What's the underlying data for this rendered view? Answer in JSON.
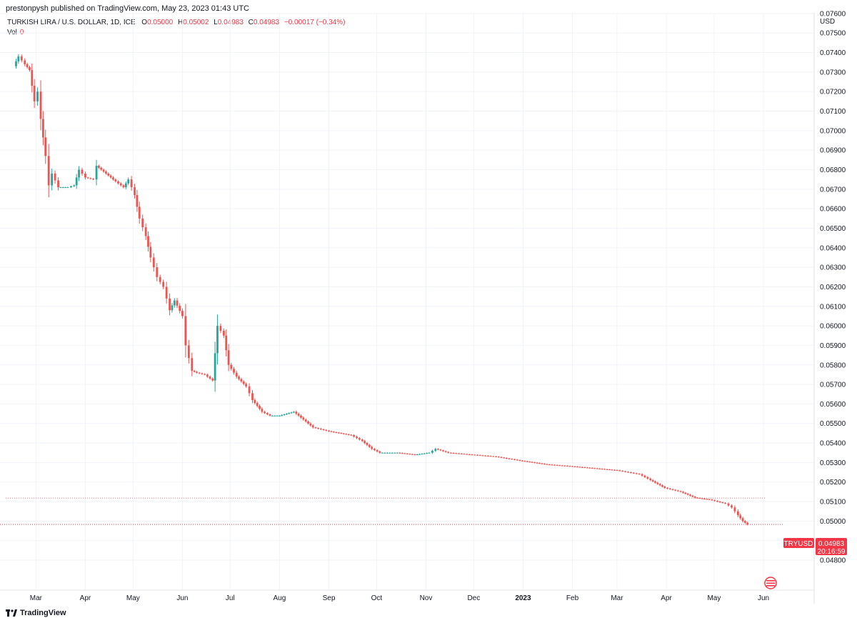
{
  "header": {
    "published": "prestonpysh published on TradingView.com, May 23, 2023 01:43 UTC"
  },
  "legend": {
    "symbol": "TURKISH LIRA / U.S. DOLLAR, 1D, ICE",
    "o_label": "O",
    "o_value": "0.05000",
    "h_label": "H",
    "h_value": "0.05002",
    "l_label": "L",
    "l_value": "0.04983",
    "c_label": "C",
    "c_value": "0.04983",
    "change": "−0.00017 (−0.34%)",
    "vol_label": "Vol",
    "vol_value": "0"
  },
  "price_tag": {
    "symbol": "TRYUSD",
    "price": "0.04983",
    "countdown": "20:16:59"
  },
  "footer": {
    "brand": "TradingView"
  },
  "colors": {
    "up": "#26a69a",
    "down": "#ef5350",
    "grid": "#f0f3fa",
    "accent": "#f23645"
  },
  "chart_data": {
    "type": "candlestick",
    "currency": "USD",
    "ylim": [
      0.0475,
      0.0765
    ],
    "y_ticks": [
      "0.04800",
      "0.04900",
      "0.05000",
      "0.05100",
      "0.05200",
      "0.05300",
      "0.05400",
      "0.05500",
      "0.05600",
      "0.05700",
      "0.05800",
      "0.05900",
      "0.06000",
      "0.06100",
      "0.06200",
      "0.06300",
      "0.06400",
      "0.06500",
      "0.06600",
      "0.06700",
      "0.06800",
      "0.06900",
      "0.07000",
      "0.07100",
      "0.07200",
      "0.07300",
      "0.07400",
      "0.07500",
      "0.07600"
    ],
    "x_ticks": [
      "Mar",
      "Apr",
      "May",
      "Jun",
      "Jul",
      "Aug",
      "Sep",
      "Oct",
      "Nov",
      "Dec",
      "2023",
      "Feb",
      "Mar",
      "Apr",
      "May",
      "Jun"
    ],
    "x_ticks_bold": [
      false,
      false,
      false,
      false,
      false,
      false,
      false,
      false,
      false,
      false,
      true,
      false,
      false,
      false,
      false,
      false
    ],
    "reference_line": 0.05118,
    "last_price": 0.04983,
    "series": [
      {
        "date": "2022-02-15",
        "c": 0.0733
      },
      {
        "date": "2022-02-18",
        "c": 0.0738
      },
      {
        "date": "2022-02-22",
        "c": 0.0734
      },
      {
        "date": "2022-02-25",
        "c": 0.0731
      },
      {
        "date": "2022-02-28",
        "c": 0.0715
      },
      {
        "date": "2022-03-02",
        "c": 0.072
      },
      {
        "date": "2022-03-04",
        "c": 0.0706
      },
      {
        "date": "2022-03-07",
        "c": 0.0687
      },
      {
        "date": "2022-03-09",
        "c": 0.0672
      },
      {
        "date": "2022-03-11",
        "c": 0.0678
      },
      {
        "date": "2022-03-15",
        "c": 0.0671
      },
      {
        "date": "2022-03-21",
        "c": 0.0671
      },
      {
        "date": "2022-03-25",
        "c": 0.0672
      },
      {
        "date": "2022-03-28",
        "c": 0.068
      },
      {
        "date": "2022-04-01",
        "c": 0.0676
      },
      {
        "date": "2022-04-06",
        "c": 0.0675
      },
      {
        "date": "2022-04-08",
        "c": 0.0682
      },
      {
        "date": "2022-04-14",
        "c": 0.0678
      },
      {
        "date": "2022-04-20",
        "c": 0.0674
      },
      {
        "date": "2022-04-25",
        "c": 0.0671
      },
      {
        "date": "2022-04-28",
        "c": 0.0675
      },
      {
        "date": "2022-05-02",
        "c": 0.0667
      },
      {
        "date": "2022-05-05",
        "c": 0.0655
      },
      {
        "date": "2022-05-09",
        "c": 0.0646
      },
      {
        "date": "2022-05-12",
        "c": 0.0635
      },
      {
        "date": "2022-05-16",
        "c": 0.0625
      },
      {
        "date": "2022-05-20",
        "c": 0.062
      },
      {
        "date": "2022-05-24",
        "c": 0.0608
      },
      {
        "date": "2022-05-27",
        "c": 0.0613
      },
      {
        "date": "2022-06-01",
        "c": 0.0605
      },
      {
        "date": "2022-06-03",
        "c": 0.059
      },
      {
        "date": "2022-06-07",
        "c": 0.0577
      },
      {
        "date": "2022-06-10",
        "c": 0.0576
      },
      {
        "date": "2022-06-15",
        "c": 0.0575
      },
      {
        "date": "2022-06-20",
        "c": 0.0572
      },
      {
        "date": "2022-06-23",
        "c": 0.06
      },
      {
        "date": "2022-06-27",
        "c": 0.0595
      },
      {
        "date": "2022-06-30",
        "c": 0.058
      },
      {
        "date": "2022-07-05",
        "c": 0.0574
      },
      {
        "date": "2022-07-11",
        "c": 0.0569
      },
      {
        "date": "2022-07-15",
        "c": 0.0562
      },
      {
        "date": "2022-07-21",
        "c": 0.0556
      },
      {
        "date": "2022-07-26",
        "c": 0.0554
      },
      {
        "date": "2022-08-01",
        "c": 0.0554
      },
      {
        "date": "2022-08-10",
        "c": 0.0556
      },
      {
        "date": "2022-08-16",
        "c": 0.0552
      },
      {
        "date": "2022-08-22",
        "c": 0.0548
      },
      {
        "date": "2022-09-01",
        "c": 0.0546
      },
      {
        "date": "2022-09-15",
        "c": 0.0544
      },
      {
        "date": "2022-09-22",
        "c": 0.0541
      },
      {
        "date": "2022-09-28",
        "c": 0.0537
      },
      {
        "date": "2022-10-03",
        "c": 0.0535
      },
      {
        "date": "2022-10-14",
        "c": 0.0535
      },
      {
        "date": "2022-10-25",
        "c": 0.0534
      },
      {
        "date": "2022-11-03",
        "c": 0.0535
      },
      {
        "date": "2022-11-07",
        "c": 0.0537
      },
      {
        "date": "2022-11-15",
        "c": 0.0535
      },
      {
        "date": "2022-11-30",
        "c": 0.0534
      },
      {
        "date": "2022-12-15",
        "c": 0.0533
      },
      {
        "date": "2022-12-30",
        "c": 0.0531
      },
      {
        "date": "2023-01-16",
        "c": 0.0529
      },
      {
        "date": "2023-02-01",
        "c": 0.0528
      },
      {
        "date": "2023-02-15",
        "c": 0.0527
      },
      {
        "date": "2023-03-01",
        "c": 0.0526
      },
      {
        "date": "2023-03-08",
        "c": 0.0525
      },
      {
        "date": "2023-03-15",
        "c": 0.0524
      },
      {
        "date": "2023-03-22",
        "c": 0.0521
      },
      {
        "date": "2023-03-31",
        "c": 0.0517
      },
      {
        "date": "2023-04-10",
        "c": 0.0515
      },
      {
        "date": "2023-04-19",
        "c": 0.0512
      },
      {
        "date": "2023-04-28",
        "c": 0.0511
      },
      {
        "date": "2023-05-08",
        "c": 0.0509
      },
      {
        "date": "2023-05-12",
        "c": 0.0507
      },
      {
        "date": "2023-05-16",
        "c": 0.0503
      },
      {
        "date": "2023-05-19",
        "c": 0.05
      },
      {
        "date": "2023-05-22",
        "c": 0.04983
      }
    ]
  }
}
